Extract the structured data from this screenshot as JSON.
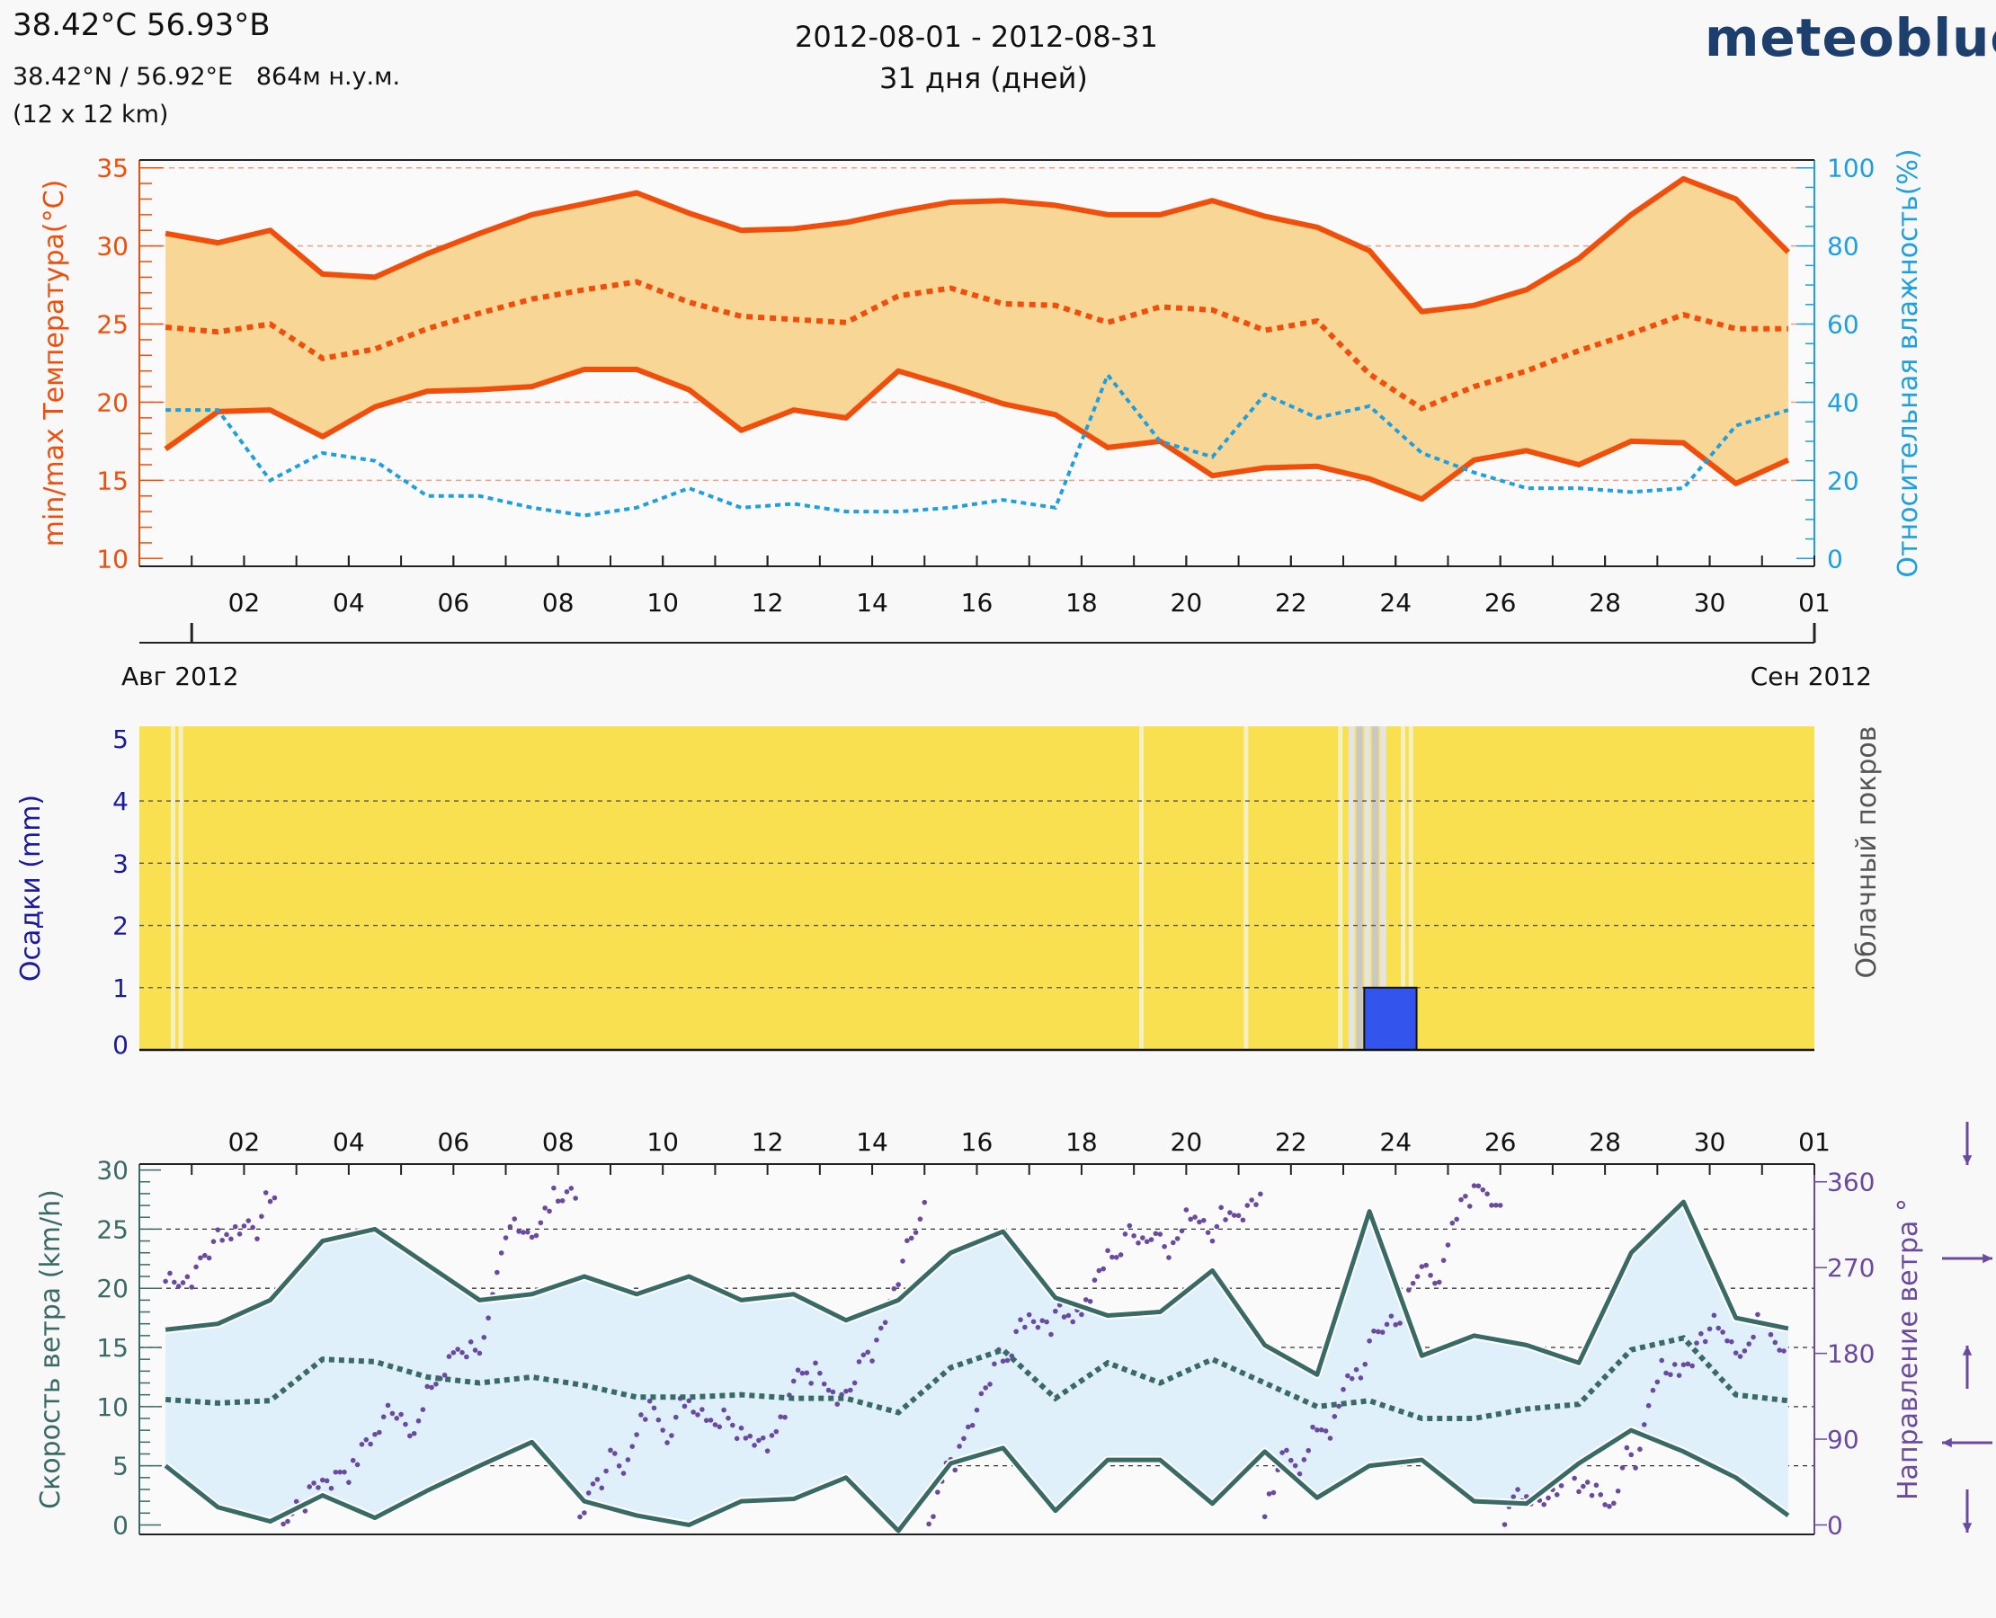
{
  "header": {
    "location": "38.42°С 56.93°В",
    "coords": "38.42°N / 56.92°E   864м н.у.м.",
    "resolution": "(12 x 12 km)",
    "date_range": "2012-08-01 - 2012-08-31",
    "days": "31 дня (дней)",
    "logo": "meteoblue"
  },
  "colors": {
    "temp": "#f04e0a",
    "temp_fill": "#f8d696",
    "humidity": "#1ea0e0",
    "precip_axis": "#1a1aa0",
    "cloud_yellow": "#f8e050",
    "rain_bar": "#3355ee",
    "wind": "#3a6a66",
    "wind_fill": "#dff0fa",
    "wind_dir": "#6a4aa0"
  },
  "chart_data": [
    {
      "id": "temperature",
      "type": "line",
      "x_days": [
        0.5,
        1.5,
        2.5,
        3.5,
        4.5,
        5.5,
        6.5,
        7.5,
        8.5,
        9.5,
        10.5,
        11.5,
        12.5,
        13.5,
        14.5,
        15.5,
        16.5,
        17.5,
        18.5,
        19.5,
        20.5,
        21.5,
        22.5,
        23.5,
        24.5,
        25.5,
        26.5,
        27.5,
        28.5,
        29.5,
        30.5,
        31.5
      ],
      "series": [
        {
          "name": "max",
          "values": [
            30.8,
            30.2,
            31,
            28.2,
            28,
            29.5,
            30.8,
            32,
            32.7,
            33.4,
            32.1,
            31,
            31.1,
            31.5,
            32.2,
            32.8,
            32.9,
            32.6,
            32,
            32,
            32.9,
            31.9,
            31.2,
            29.7,
            25.8,
            26.2,
            27.2,
            29.2,
            32,
            34.3,
            33,
            29.6
          ]
        },
        {
          "name": "mean",
          "values": [
            24.8,
            24.5,
            25,
            22.8,
            23.4,
            24.7,
            25.7,
            26.6,
            27.2,
            27.7,
            26.4,
            25.5,
            25.3,
            25.1,
            26.8,
            27.3,
            26.3,
            26.2,
            25.1,
            26.1,
            25.9,
            24.6,
            25.2,
            21.8,
            19.6,
            21,
            22,
            23.3,
            24.4,
            25.6,
            24.7,
            24.7
          ]
        },
        {
          "name": "min",
          "values": [
            17,
            19.4,
            19.5,
            17.8,
            19.7,
            20.7,
            20.8,
            21,
            22.1,
            22.1,
            20.8,
            18.2,
            19.5,
            19,
            22,
            21,
            19.9,
            19.2,
            17.1,
            17.5,
            15.3,
            15.8,
            15.9,
            15.1,
            13.8,
            16.3,
            16.9,
            16,
            17.5,
            17.4,
            14.8,
            16.3
          ]
        },
        {
          "name": "humidity",
          "axis": "right",
          "values": [
            38,
            38,
            20,
            27,
            25,
            16,
            16,
            13,
            11,
            13,
            18,
            13,
            14,
            12,
            12,
            13,
            15,
            13,
            47,
            30,
            26,
            42,
            36,
            39,
            27,
            22,
            18,
            18,
            17,
            18,
            34,
            38
          ]
        }
      ],
      "ylabel": "min/max Температура(°C)",
      "ylabel_right": "Относительная влажность(%)",
      "ylim": [
        9.5,
        35.5
      ],
      "ylim_right": [
        0,
        100
      ],
      "yticks": [
        "10",
        "15",
        "20",
        "25",
        "30",
        "35"
      ],
      "yticks_right": [
        "0",
        "20",
        "40",
        "60",
        "80",
        "100"
      ],
      "xticks": [
        "02",
        "04",
        "06",
        "08",
        "10",
        "12",
        "14",
        "16",
        "18",
        "20",
        "22",
        "24",
        "26",
        "28",
        "30",
        "01"
      ],
      "month_start": "Авг 2012",
      "month_end": "Сен 2012"
    },
    {
      "id": "precipitation",
      "type": "bar",
      "ylabel": "Осадки (mm)",
      "ylabel_right": "Облачный покров",
      "ylim": [
        0,
        5.2
      ],
      "yticks": [
        "0",
        "1",
        "2",
        "3",
        "4",
        "5"
      ],
      "bars": [
        {
          "start_day": 23.4,
          "end_day": 24.4,
          "value": 1.0
        }
      ],
      "clear_strips_days": [
        0.6,
        0.75,
        19.1,
        21.1,
        22.9,
        24.1,
        24.25
      ],
      "overcast_days": [
        23.1,
        23.25,
        23.4,
        23.55,
        23.7
      ]
    },
    {
      "id": "wind",
      "type": "line",
      "x_days": [
        0.5,
        1.5,
        2.5,
        3.5,
        4.5,
        5.5,
        6.5,
        7.5,
        8.5,
        9.5,
        10.5,
        11.5,
        12.5,
        13.5,
        14.5,
        15.5,
        16.5,
        17.5,
        18.5,
        19.5,
        20.5,
        21.5,
        22.5,
        23.5,
        24.5,
        25.5,
        26.5,
        27.5,
        28.5,
        29.5,
        30.5,
        31.5
      ],
      "series": [
        {
          "name": "max",
          "values": [
            16.5,
            17,
            19,
            24,
            25,
            22,
            19,
            19.5,
            21,
            19.5,
            21,
            19,
            19.5,
            17.3,
            19,
            23,
            24.8,
            19.2,
            17.7,
            18,
            21.5,
            15.2,
            12.7,
            26.5,
            14.3,
            16,
            15.2,
            13.7,
            23,
            27.3,
            17.5,
            16.6
          ]
        },
        {
          "name": "mean",
          "values": [
            10.6,
            10.3,
            10.5,
            14,
            13.8,
            12.5,
            12,
            12.5,
            11.8,
            10.8,
            10.8,
            11,
            10.7,
            10.7,
            9.5,
            13.3,
            14.8,
            10.7,
            13.7,
            12,
            14,
            12,
            10,
            10.5,
            9,
            9,
            9.8,
            10.2,
            14.8,
            15.8,
            11,
            10.5
          ]
        },
        {
          "name": "min",
          "values": [
            5,
            1.5,
            0.3,
            2.5,
            0.6,
            2.9,
            5,
            7,
            2,
            0.8,
            0,
            2,
            2.2,
            4,
            -0.5,
            5.2,
            6.5,
            1.2,
            5.5,
            5.5,
            1.8,
            6.2,
            2.3,
            5,
            5.5,
            2,
            1.8,
            5.2,
            8,
            6.2,
            4,
            0.8
          ]
        }
      ],
      "ylabel": "Скорость ветра (km/h)",
      "ylabel_right": "Направление ветра °",
      "ylim": [
        -0.8,
        30.5
      ],
      "ylim_right": [
        0,
        360
      ],
      "yticks": [
        "0",
        "5",
        "10",
        "15",
        "20",
        "25",
        "30"
      ],
      "yticks_right": [
        "0",
        "90",
        "180",
        "270",
        "360"
      ],
      "xticks": [
        "02",
        "04",
        "06",
        "08",
        "10",
        "12",
        "14",
        "16",
        "18",
        "20",
        "22",
        "24",
        "26",
        "28",
        "30",
        "01"
      ]
    }
  ]
}
